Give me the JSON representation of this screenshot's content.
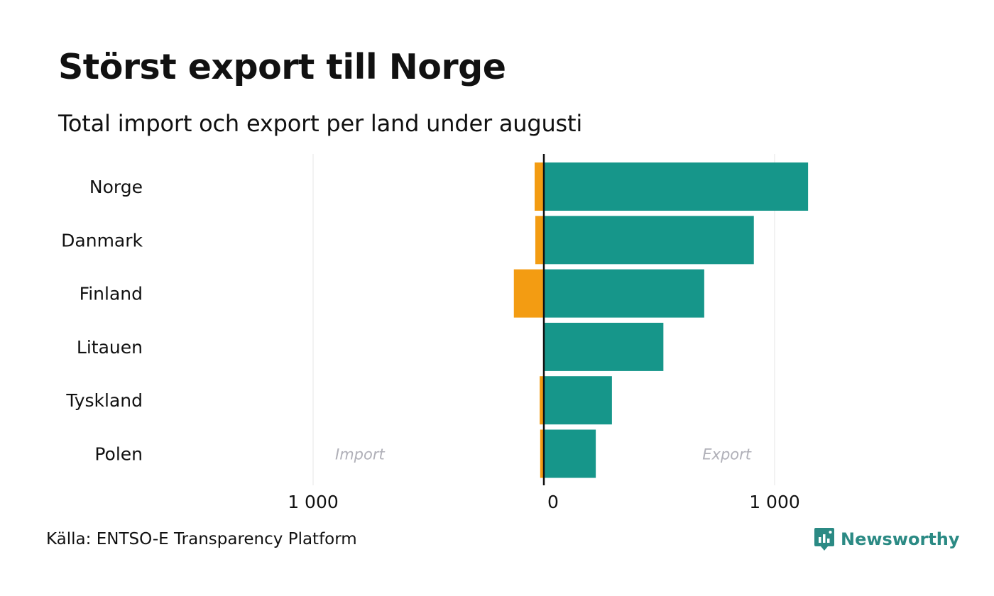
{
  "title": "Störst export till Norge",
  "subtitle": "Total import och export per land under augusti",
  "source": "Källa: ENTSO-E Transparency Platform",
  "logo": {
    "name": "Newsworthy",
    "icon": "newsworthy-logo-icon"
  },
  "colors": {
    "import": "#f39c12",
    "export": "#16968a",
    "grid": "#e6e6e6",
    "zero_line": "#111111",
    "annotation": "#b0b0b8",
    "logo": "#2b8a84"
  },
  "chart_data": {
    "type": "bar",
    "orientation": "horizontal",
    "categories": [
      "Norge",
      "Danmark",
      "Finland",
      "Litauen",
      "Tyskland",
      "Polen"
    ],
    "series": [
      {
        "key": "import",
        "values": [
          -40,
          -37,
          -130,
          0,
          -18,
          -16
        ]
      },
      {
        "key": "export",
        "values": [
          1145,
          910,
          695,
          518,
          295,
          225
        ]
      }
    ],
    "xlim": [
      -1000,
      1000
    ],
    "xticks": [
      -1000,
      0,
      1000
    ],
    "xtick_labels": [
      "1 000",
      "0",
      "1 000"
    ],
    "grid": true,
    "annotations": {
      "import": "Import",
      "export": "Export"
    }
  }
}
